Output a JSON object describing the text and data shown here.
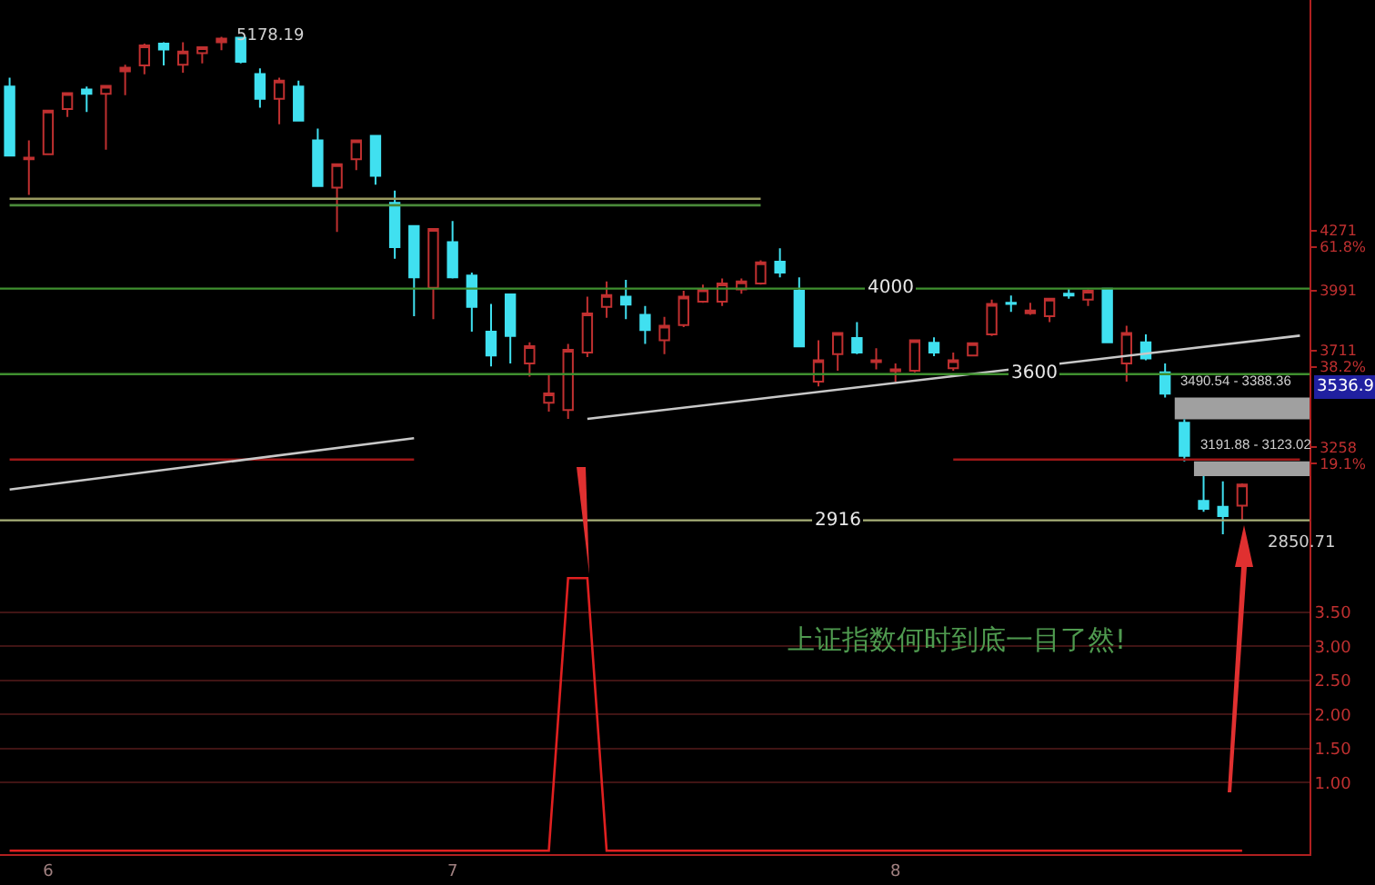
{
  "chart_data": [
    {
      "type": "candlestick",
      "categories": [
        null,
        null,
        "6",
        null,
        null,
        null,
        null,
        null,
        null,
        null,
        null,
        null,
        null,
        null,
        null,
        null,
        null,
        null,
        null,
        null,
        null,
        null,
        null,
        "7",
        null,
        null,
        null,
        null,
        null,
        null,
        null,
        null,
        null,
        null,
        null,
        null,
        null,
        null,
        null,
        null,
        null,
        null,
        null,
        null,
        null,
        null,
        "8",
        null,
        null,
        null,
        null,
        null,
        null,
        null,
        null,
        null,
        null,
        null,
        null,
        null,
        null,
        null,
        null,
        null,
        null,
        null,
        null,
        null
      ],
      "ohlc": [
        [
          4945,
          4987,
          4622,
          4622
        ],
        [
          4605,
          4693,
          4438,
          4613
        ],
        [
          4628,
          4832,
          4628,
          4832
        ],
        [
          4840,
          4914,
          4803,
          4914
        ],
        [
          4931,
          4945,
          4826,
          4911
        ],
        [
          4911,
          4948,
          4650,
          4948
        ],
        [
          5016,
          5047,
          4905,
          5033
        ],
        [
          5044,
          5146,
          5002,
          5138
        ],
        [
          5146,
          5152,
          5044,
          5118
        ],
        [
          5047,
          5152,
          5010,
          5109
        ],
        [
          5101,
          5129,
          5053,
          5129
        ],
        [
          5152,
          5178.19,
          5115,
          5169
        ],
        [
          5174,
          5176,
          5053,
          5061
        ],
        [
          5004,
          5030,
          4846,
          4888
        ],
        [
          4888,
          4987,
          4769,
          4973
        ],
        [
          4945,
          4973,
          4786,
          4786
        ],
        [
          4693,
          4749,
          4480,
          4480
        ],
        [
          4472,
          4582,
          4265,
          4582
        ],
        [
          4605,
          4693,
          4554,
          4693
        ],
        [
          4715,
          4715,
          4486,
          4528
        ],
        [
          4401,
          4458,
          4140,
          4194
        ],
        [
          4293,
          4293,
          3871,
          4052
        ],
        [
          4004,
          4279,
          3857,
          4279
        ],
        [
          4217,
          4316,
          4047,
          4052
        ],
        [
          4061,
          4075,
          3798,
          3914
        ],
        [
          3798,
          3928,
          3636,
          3687
        ],
        [
          3973,
          3973,
          3650,
          3778
        ],
        [
          3650,
          3749,
          3588,
          3730
        ],
        [
          3466,
          3594,
          3424,
          3509
        ],
        [
          3432,
          3741,
          3390,
          3713
        ],
        [
          3701,
          3962,
          3679,
          3883
        ],
        [
          3914,
          4033,
          3863,
          3970
        ],
        [
          3962,
          4041,
          3857,
          3925
        ],
        [
          3877,
          3919,
          3741,
          3806
        ],
        [
          3758,
          3868,
          3693,
          3826
        ],
        [
          3829,
          3990,
          3820,
          3962
        ],
        [
          3939,
          4018,
          3933,
          3996
        ],
        [
          3939,
          4047,
          3919,
          4024
        ],
        [
          3996,
          4047,
          3976,
          4033
        ],
        [
          4024,
          4132,
          4018,
          4123
        ],
        [
          4126,
          4188,
          4052,
          4075
        ],
        [
          3990,
          4052,
          3729,
          3729
        ],
        [
          3565,
          3758,
          3542,
          3664
        ],
        [
          3693,
          3792,
          3616,
          3792
        ],
        [
          3769,
          3843,
          3693,
          3701
        ],
        [
          3656,
          3721,
          3622,
          3664
        ],
        [
          3613,
          3650,
          3565,
          3622
        ],
        [
          3616,
          3758,
          3608,
          3758
        ],
        [
          3746,
          3772,
          3684,
          3701
        ],
        [
          3627,
          3701,
          3616,
          3664
        ],
        [
          3687,
          3744,
          3687,
          3744
        ],
        [
          3786,
          3948,
          3778,
          3928
        ],
        [
          3933,
          3967,
          3891,
          3928
        ],
        [
          3885,
          3933,
          3877,
          3897
        ],
        [
          3871,
          3953,
          3843,
          3953
        ],
        [
          3976,
          3999,
          3953,
          3967
        ],
        [
          3948,
          3996,
          3919,
          3990
        ],
        [
          3999,
          3999,
          3749,
          3749
        ],
        [
          3650,
          3826,
          3565,
          3792
        ],
        [
          3749,
          3786,
          3664,
          3673
        ],
        [
          3608,
          3650,
          3490.54,
          3508
        ],
        [
          3372,
          3388.36,
          3191.88,
          3217
        ],
        [
          3007,
          3123.02,
          2956,
          2970
        ],
        [
          2979,
          3098,
          2850.71,
          2936
        ],
        [
          2984,
          3089,
          2914,
          3083
        ],
        null,
        null,
        null
      ],
      "colors": [
        "#40e0f0",
        "#c03030",
        "#c03030",
        "#c03030",
        "#40e0f0",
        "#c03030",
        "#c03030",
        "#c03030",
        "#40e0f0",
        "#c03030",
        "#c03030",
        "#c03030",
        "#40e0f0",
        "#40e0f0",
        "#c03030",
        "#40e0f0",
        "#40e0f0",
        "#c03030",
        "#c03030",
        "#40e0f0",
        "#40e0f0",
        "#40e0f0",
        "#c03030",
        "#40e0f0",
        "#40e0f0",
        "#40e0f0",
        "#40e0f0",
        "#c03030",
        "#c03030",
        "#c03030",
        "#c03030",
        "#c03030",
        "#40e0f0",
        "#40e0f0",
        "#c03030",
        "#c03030",
        "#c03030",
        "#c03030",
        "#c03030",
        "#c03030",
        "#40e0f0",
        "#40e0f0",
        "#c03030",
        "#c03030",
        "#40e0f0",
        "#c03030",
        "#c03030",
        "#c03030",
        "#40e0f0",
        "#c03030",
        "#c03030",
        "#c03030",
        "#40e0f0",
        "#c03030",
        "#c03030",
        "#40e0f0",
        "#c03030",
        "#40e0f0",
        "#c03030",
        "#40e0f0",
        "#40e0f0",
        "#40e0f0",
        "#40e0f0",
        "#40e0f0",
        "#c03030",
        null,
        null,
        null
      ],
      "series": [
        {
          "type": "line",
          "color": "#9a9a60",
          "values": [
            4420,
            null,
            null,
            null,
            null,
            null,
            null,
            null,
            null,
            null,
            null,
            null,
            null,
            null,
            null,
            null,
            null,
            null,
            null,
            null,
            null,
            null,
            null,
            null,
            null,
            null,
            null,
            null,
            null,
            null,
            null,
            null,
            null,
            null,
            null,
            null,
            null,
            null,
            null,
            4420,
            null,
            null,
            null,
            null,
            null,
            null,
            null,
            null,
            null,
            null,
            null,
            null,
            null,
            null,
            null,
            null,
            null,
            null,
            null,
            null,
            null,
            null,
            null,
            null,
            null,
            null,
            null,
            null
          ]
        },
        {
          "type": "line",
          "color": "#4a8a3a",
          "values": [
            4390,
            null,
            null,
            null,
            null,
            null,
            null,
            null,
            null,
            null,
            null,
            null,
            null,
            null,
            null,
            null,
            null,
            null,
            null,
            null,
            null,
            null,
            null,
            null,
            null,
            null,
            null,
            null,
            null,
            null,
            null,
            null,
            null,
            null,
            null,
            null,
            null,
            null,
            null,
            4390,
            null,
            null,
            null,
            null,
            null,
            null,
            null,
            null,
            null,
            null,
            null,
            null,
            null,
            null,
            null,
            null,
            null,
            null,
            null,
            null,
            null,
            null,
            null,
            null,
            null,
            null,
            null,
            null
          ]
        },
        {
          "type": "line",
          "color": "#a01818",
          "values": [
            3200,
            null,
            null,
            null,
            null,
            null,
            null,
            null,
            null,
            null,
            null,
            null,
            null,
            null,
            null,
            null,
            null,
            null,
            null,
            null,
            null,
            3200,
            null,
            null,
            null,
            null,
            null,
            null,
            null,
            null,
            null,
            null,
            null,
            null,
            null,
            null,
            null,
            null,
            null,
            null,
            null,
            null,
            null,
            null,
            null,
            null,
            null,
            null,
            null,
            null,
            null,
            null,
            null,
            null,
            null,
            null,
            null,
            null,
            null,
            null,
            null,
            null,
            null,
            null,
            null,
            null,
            null,
            null
          ]
        },
        {
          "type": "line",
          "color": "#a01818",
          "values": [
            null,
            null,
            null,
            null,
            null,
            null,
            null,
            null,
            null,
            null,
            null,
            null,
            null,
            null,
            null,
            null,
            null,
            null,
            null,
            null,
            null,
            null,
            null,
            null,
            null,
            null,
            null,
            null,
            null,
            null,
            null,
            null,
            null,
            null,
            null,
            null,
            null,
            null,
            null,
            null,
            null,
            null,
            null,
            null,
            null,
            null,
            null,
            null,
            null,
            3200,
            null,
            null,
            null,
            null,
            null,
            null,
            null,
            null,
            null,
            null,
            null,
            null,
            null,
            null,
            null,
            null,
            null,
            3200
          ]
        },
        {
          "type": "line",
          "color": "#c8c8c8",
          "values": [
            3060,
            null,
            null,
            null,
            null,
            null,
            null,
            null,
            null,
            null,
            null,
            null,
            null,
            null,
            null,
            null,
            null,
            null,
            null,
            null,
            null,
            3300,
            null,
            null,
            null,
            null,
            null,
            null,
            null,
            null,
            null,
            null,
            null,
            null,
            null,
            null,
            null,
            null,
            null,
            null,
            null,
            null,
            null,
            null,
            null,
            null,
            null,
            null,
            null,
            null,
            null,
            null,
            null,
            null,
            null,
            null,
            null,
            null,
            null,
            null,
            null,
            null,
            null,
            null,
            null,
            null,
            null,
            null
          ]
        },
        {
          "type": "line",
          "color": "#c8c8c8",
          "values": [
            null,
            null,
            null,
            null,
            null,
            null,
            null,
            null,
            null,
            null,
            null,
            null,
            null,
            null,
            null,
            null,
            null,
            null,
            null,
            null,
            null,
            null,
            null,
            null,
            null,
            null,
            null,
            null,
            null,
            null,
            3390,
            null,
            null,
            null,
            null,
            null,
            null,
            null,
            null,
            null,
            null,
            null,
            null,
            null,
            null,
            null,
            null,
            null,
            null,
            null,
            null,
            null,
            null,
            null,
            null,
            null,
            null,
            null,
            null,
            null,
            null,
            null,
            null,
            null,
            null,
            null,
            null,
            3780
          ]
        }
      ],
      "ref_lines": [
        {
          "axis": "y",
          "value": 4000,
          "label": "4000",
          "color": "#3f8f2f"
        },
        {
          "axis": "y",
          "value": 3600,
          "label": "3600",
          "color": "#3f8f2f"
        },
        {
          "axis": "y",
          "value": 2916,
          "label": "2916",
          "color": "#a8b078"
        }
      ],
      "bands": [
        {
          "axis": "y",
          "from": 3490.54,
          "to": 3388.36,
          "label": "3490.54 - 3388.36",
          "color": "#a0a0a0"
        },
        {
          "axis": "y",
          "from": 3191.88,
          "to": 3123.02,
          "label": "3191.88 - 3123.02",
          "color": "#a0a0a0"
        }
      ],
      "annotations": [
        "5178.19",
        "2850.71",
        "3536.9"
      ],
      "ylim": [
        2757,
        5350
      ],
      "yticks": [
        4271,
        3991,
        3711,
        3258
      ],
      "y2lim": [
        1.2,
        110.5
      ],
      "y2ticks": [
        {
          "value": 61.8,
          "label": "61.8%"
        },
        {
          "value": 38.2,
          "label": "38.2%"
        },
        {
          "value": 19.1,
          "label": "19.1%"
        }
      ],
      "tick_labels": "y"
    },
    {
      "type": "line",
      "categories": [
        null,
        null,
        "6",
        null,
        null,
        null,
        null,
        null,
        null,
        null,
        null,
        null,
        null,
        null,
        null,
        null,
        null,
        null,
        null,
        null,
        null,
        null,
        null,
        "7",
        null,
        null,
        null,
        null,
        null,
        null,
        null,
        null,
        null,
        null,
        null,
        null,
        null,
        null,
        null,
        null,
        null,
        null,
        null,
        null,
        null,
        null,
        "8",
        null,
        null,
        null,
        null,
        null,
        null,
        null,
        null,
        null,
        null,
        null,
        null,
        null,
        null,
        null,
        null,
        null,
        null,
        null,
        null,
        null
      ],
      "series": [
        {
          "color": "#e02020",
          "values": [
            0,
            0,
            0,
            0,
            0,
            0,
            0,
            0,
            0,
            0,
            0,
            0,
            0,
            0,
            0,
            0,
            0,
            0,
            0,
            0,
            0,
            0,
            0,
            0,
            0,
            0,
            0,
            0,
            0,
            4,
            4,
            0,
            0,
            0,
            0,
            0,
            0,
            0,
            0,
            0,
            0,
            0,
            0,
            0,
            0,
            0,
            0,
            0,
            0,
            0,
            0,
            0,
            0,
            0,
            0,
            0,
            0,
            0,
            0,
            0,
            0,
            0,
            0,
            0,
            0,
            null,
            null,
            null
          ]
        }
      ],
      "ylim": [
        -0.05,
        4.35
      ],
      "yticks": [
        {
          "value": 1,
          "label": "1.00"
        },
        {
          "value": 1.5,
          "label": "1.50"
        },
        {
          "value": 2,
          "label": "2.00"
        },
        {
          "value": 2.5,
          "label": "2.50"
        },
        {
          "value": 3,
          "label": "3.00"
        },
        {
          "value": 3.5,
          "label": "3.50"
        }
      ],
      "grid": "y",
      "annotations": [
        "上证指数何时到底一目了然!"
      ]
    }
  ]
}
